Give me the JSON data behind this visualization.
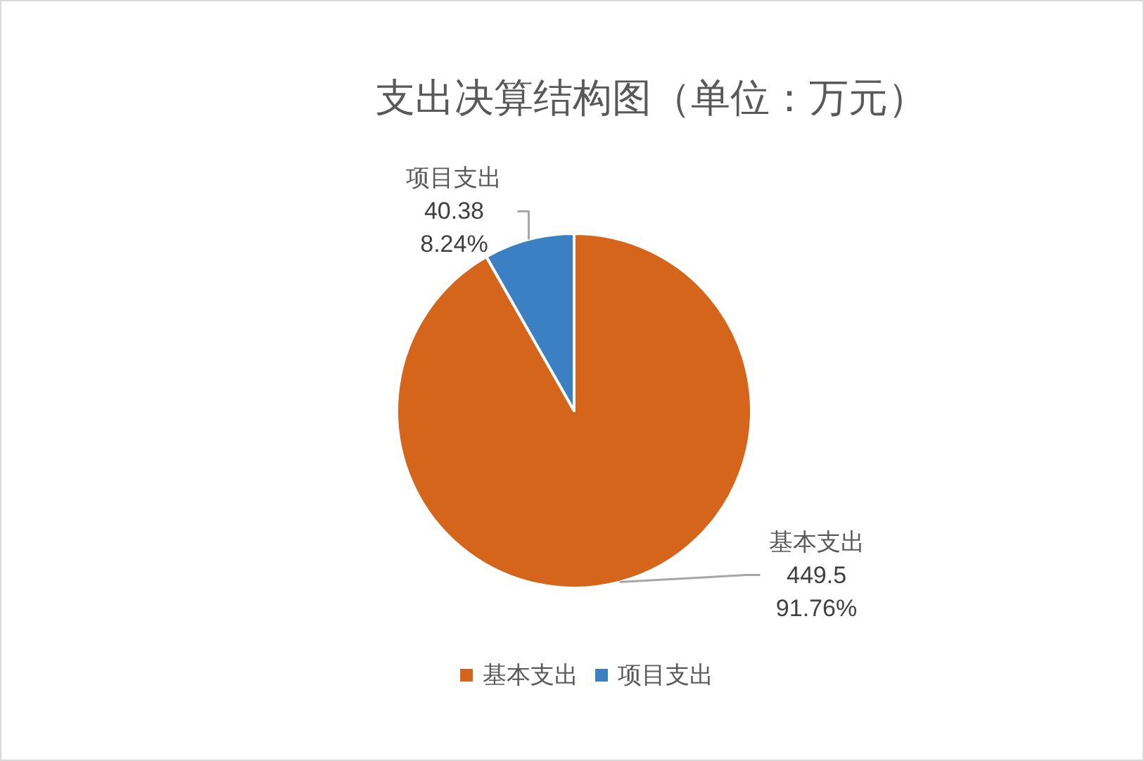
{
  "chart_data": {
    "type": "pie",
    "title": "支出决算结构图（单位：万元）",
    "categories": [
      "基本支出",
      "项目支出"
    ],
    "values": [
      449.5,
      40.38
    ],
    "colors": [
      "#d4651a",
      "#3a80c3"
    ],
    "value_labels": [
      "449.5\n91.76%",
      "40.38\n8.24%"
    ],
    "legend": "bottom"
  }
}
